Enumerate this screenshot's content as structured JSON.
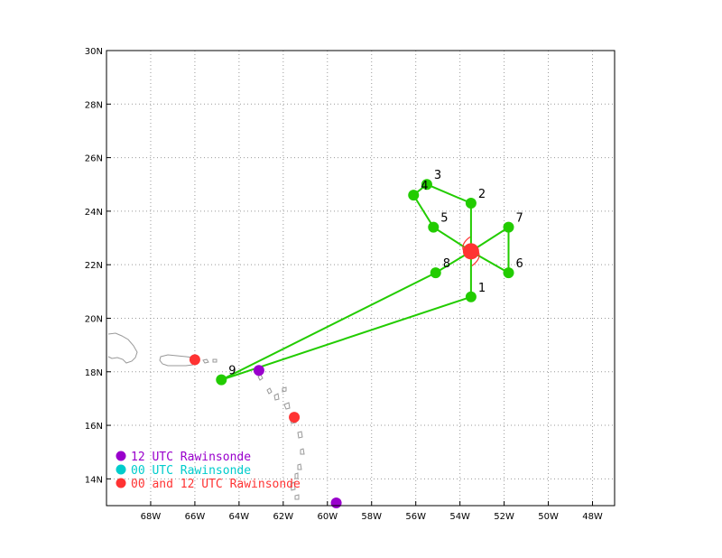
{
  "map": {
    "lon_range": [
      -70,
      -47
    ],
    "lat_range": [
      13,
      30
    ],
    "grid": true,
    "x_ticks": [
      {
        "lon": -68,
        "label": "68W"
      },
      {
        "lon": -66,
        "label": "66W"
      },
      {
        "lon": -64,
        "label": "64W"
      },
      {
        "lon": -62,
        "label": "62W"
      },
      {
        "lon": -60,
        "label": "60W"
      },
      {
        "lon": -58,
        "label": "58W"
      },
      {
        "lon": -56,
        "label": "56W"
      },
      {
        "lon": -54,
        "label": "54W"
      },
      {
        "lon": -52,
        "label": "52W"
      },
      {
        "lon": -50,
        "label": "50W"
      },
      {
        "lon": -48,
        "label": "48W"
      }
    ],
    "y_ticks": [
      {
        "lat": 14,
        "label": "14N"
      },
      {
        "lat": 16,
        "label": "16N"
      },
      {
        "lat": 18,
        "label": "18N"
      },
      {
        "lat": 20,
        "label": "20N"
      },
      {
        "lat": 22,
        "label": "22N"
      },
      {
        "lat": 24,
        "label": "24N"
      },
      {
        "lat": 26,
        "label": "26N"
      },
      {
        "lat": 28,
        "label": "28N"
      },
      {
        "lat": 30,
        "label": "30N"
      }
    ],
    "storm_center": {
      "lon": -53.5,
      "lat": 22.5,
      "color": "#ff3333"
    },
    "track_color": "#22cc00",
    "waypoints": [
      {
        "label": "",
        "lon": -64.8,
        "lat": 17.7
      },
      {
        "label": "1",
        "lon": -53.5,
        "lat": 20.8
      },
      {
        "label": "",
        "lon": -53.5,
        "lat": 22.5
      },
      {
        "label": "2",
        "lon": -53.5,
        "lat": 24.3
      },
      {
        "label": "3",
        "lon": -55.5,
        "lat": 25.0
      },
      {
        "label": "4",
        "lon": -56.1,
        "lat": 24.6
      },
      {
        "label": "5",
        "lon": -55.2,
        "lat": 23.4
      },
      {
        "label": "",
        "lon": -53.5,
        "lat": 22.5
      },
      {
        "label": "6",
        "lon": -51.8,
        "lat": 21.7
      },
      {
        "label": "7",
        "lon": -51.8,
        "lat": 23.4
      },
      {
        "label": "",
        "lon": -53.5,
        "lat": 22.5
      },
      {
        "label": "8",
        "lon": -55.1,
        "lat": 21.7
      },
      {
        "label": "9",
        "lon": -64.8,
        "lat": 17.7
      }
    ],
    "rawinsondes": [
      {
        "lon": -63.1,
        "lat": 18.05,
        "color": "#9900cc"
      },
      {
        "lon": -59.6,
        "lat": 13.1,
        "color": "#9900cc"
      },
      {
        "lon": -66.0,
        "lat": 18.45,
        "color": "#ff3333"
      },
      {
        "lon": -61.5,
        "lat": 16.3,
        "color": "#ff3333"
      }
    ]
  },
  "legend": [
    {
      "label": "12 UTC Rawinsonde",
      "color": "#9900cc"
    },
    {
      "label": "00 UTC Rawinsonde",
      "color": "#00cccc"
    },
    {
      "label": "00 and 12 UTC Rawinsonde",
      "color": "#ff3333"
    }
  ]
}
